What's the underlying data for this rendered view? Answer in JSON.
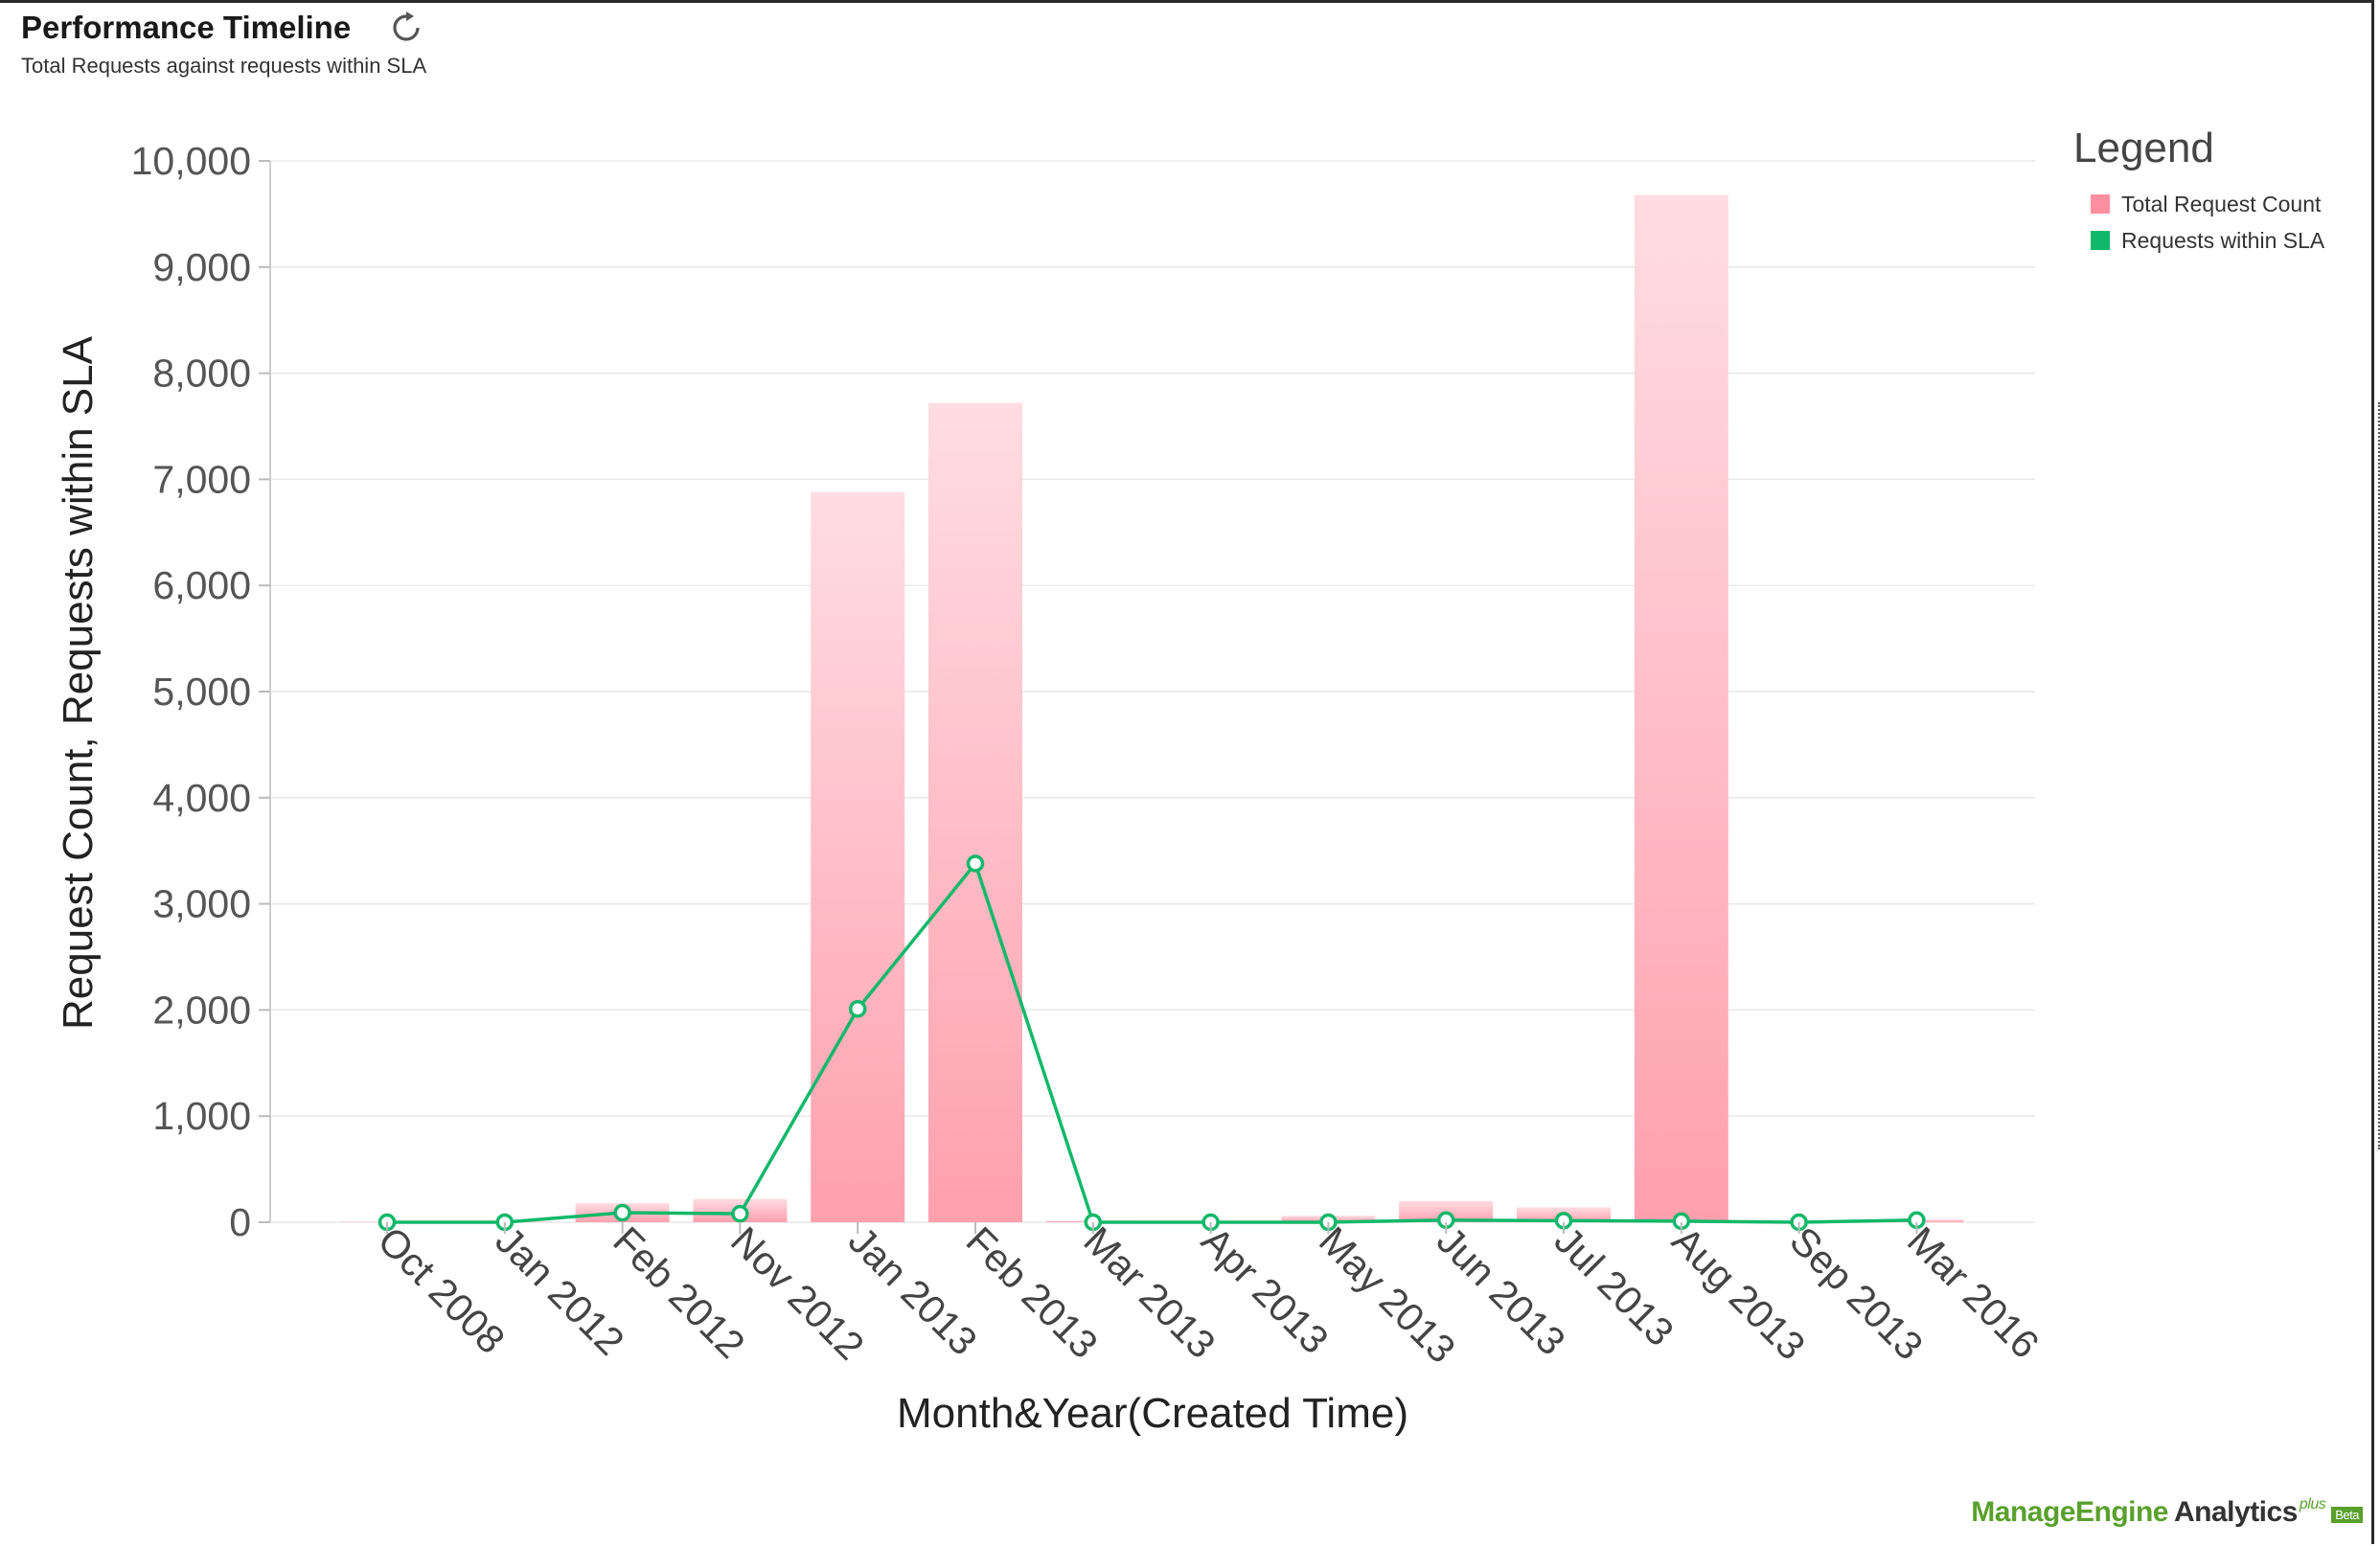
{
  "header": {
    "title": "Performance Timeline",
    "subtitle": "Total Requests against requests within SLA",
    "refresh_icon": "refresh-icon"
  },
  "legend": {
    "title": "Legend",
    "items": [
      {
        "label": "Total Request Count",
        "color": "#ff8fa0"
      },
      {
        "label": "Requests within SLA",
        "color": "#12b86a"
      }
    ]
  },
  "branding": {
    "logo": "ManageEngine",
    "product": "Analytics",
    "plus": "plus",
    "badge": "Beta"
  },
  "chart_data": {
    "type": "bar",
    "xlabel": "Month&Year(Created Time)",
    "ylabel": "Request Count, Requests within SLA",
    "ylim": [
      0,
      10000
    ],
    "yticks": [
      "0",
      "1,000",
      "2,000",
      "3,000",
      "4,000",
      "5,000",
      "6,000",
      "7,000",
      "8,000",
      "9,000",
      "10,000"
    ],
    "categories": [
      "Oct 2008",
      "Jan 2012",
      "Feb 2012",
      "Nov 2012",
      "Jan 2013",
      "Feb 2013",
      "Mar 2013",
      "Apr 2013",
      "May 2013",
      "Jun 2013",
      "Jul 2013",
      "Aug 2013",
      "Sep 2013",
      "Mar 2016"
    ],
    "series": [
      {
        "name": "Total Request Count",
        "type": "bar",
        "color": "#ff8fa0",
        "values": [
          2,
          5,
          180,
          220,
          6880,
          7720,
          15,
          8,
          60,
          200,
          140,
          9680,
          10,
          25
        ]
      },
      {
        "name": "Requests within SLA",
        "type": "line",
        "color": "#12b86a",
        "values": [
          0,
          0,
          90,
          80,
          2010,
          3380,
          0,
          0,
          0,
          20,
          15,
          10,
          0,
          20
        ]
      }
    ],
    "grid": true,
    "legend_position": "top-right"
  }
}
